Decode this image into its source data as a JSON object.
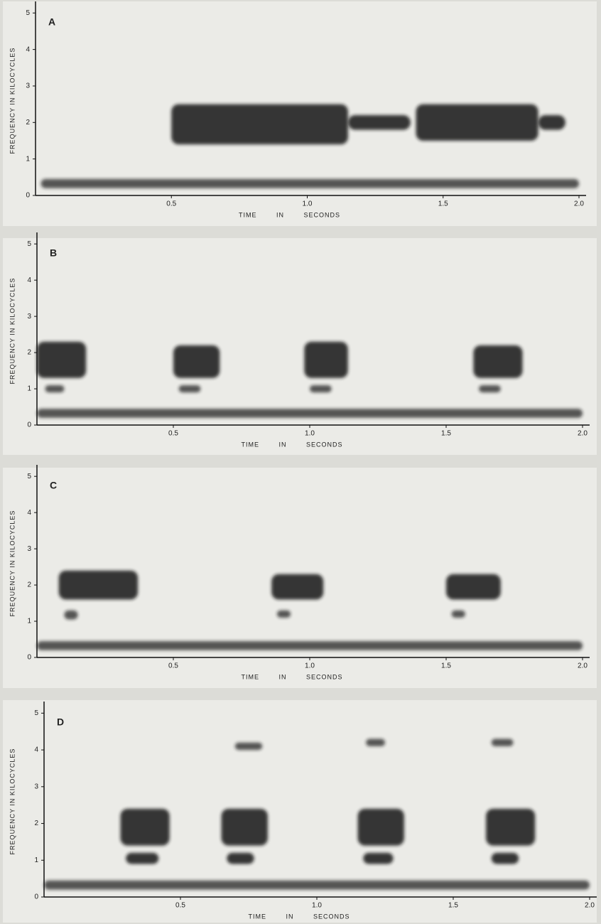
{
  "chart_data": [
    {
      "type": "spectrogram",
      "title": "A",
      "ylabel": "FREQUENCY IN KILOCYCLES",
      "xlabel": "TIME IN SECONDS",
      "xlim": [
        0,
        2.0
      ],
      "ylim": [
        0,
        5.2
      ],
      "xticks": [
        0.5,
        {
          "value": 1,
          "label": "1.0"
        },
        1.5,
        {
          "value": 2,
          "label": "2.0"
        }
      ],
      "yticks": [
        0,
        1,
        2,
        3,
        4,
        5
      ],
      "segments": [
        {
          "t": [
            0.02,
            2.0
          ],
          "f": [
            0.2,
            0.45
          ]
        },
        {
          "t": [
            0.5,
            1.15
          ],
          "f": [
            1.4,
            2.5
          ]
        },
        {
          "t": [
            1.15,
            1.38
          ],
          "f": [
            1.8,
            2.2
          ]
        },
        {
          "t": [
            1.4,
            1.85
          ],
          "f": [
            1.5,
            2.5
          ]
        },
        {
          "t": [
            1.85,
            1.95
          ],
          "f": [
            1.8,
            2.2
          ]
        }
      ]
    },
    {
      "type": "spectrogram",
      "title": "B",
      "ylabel": "FREQUENCY IN KILOCYCLES",
      "xlabel": "TIME IN SECONDS",
      "xlim": [
        0,
        2.0
      ],
      "ylim": [
        0,
        5.2
      ],
      "xticks": [
        0.5,
        {
          "value": 1,
          "label": "1.0"
        },
        1.5,
        {
          "value": 2,
          "label": "2.0"
        }
      ],
      "yticks": [
        0,
        1,
        2,
        3,
        4,
        5
      ],
      "segments": [
        {
          "t": [
            0.0,
            2.0
          ],
          "f": [
            0.2,
            0.45
          ]
        },
        {
          "t": [
            0.0,
            0.18
          ],
          "f": [
            1.3,
            2.3
          ]
        },
        {
          "t": [
            0.03,
            0.1
          ],
          "f": [
            0.9,
            1.1
          ]
        },
        {
          "t": [
            0.5,
            0.67
          ],
          "f": [
            1.3,
            2.2
          ]
        },
        {
          "t": [
            0.52,
            0.6
          ],
          "f": [
            0.9,
            1.1
          ]
        },
        {
          "t": [
            0.98,
            1.14
          ],
          "f": [
            1.3,
            2.3
          ]
        },
        {
          "t": [
            1.0,
            1.08
          ],
          "f": [
            0.9,
            1.1
          ]
        },
        {
          "t": [
            1.6,
            1.78
          ],
          "f": [
            1.3,
            2.2
          ]
        },
        {
          "t": [
            1.62,
            1.7
          ],
          "f": [
            0.9,
            1.1
          ]
        }
      ]
    },
    {
      "type": "spectrogram",
      "title": "C",
      "ylabel": "FREQUENCY IN KILOCYCLES",
      "xlabel": "TIME IN SECONDS",
      "xlim": [
        0,
        2.0
      ],
      "ylim": [
        0,
        5.2
      ],
      "xticks": [
        0.5,
        {
          "value": 1,
          "label": "1.0"
        },
        1.5,
        {
          "value": 2,
          "label": "2.0"
        }
      ],
      "yticks": [
        0,
        1,
        2,
        3,
        4,
        5
      ],
      "segments": [
        {
          "t": [
            0.0,
            2.0
          ],
          "f": [
            0.2,
            0.45
          ]
        },
        {
          "t": [
            0.08,
            0.37
          ],
          "f": [
            1.6,
            2.4
          ]
        },
        {
          "t": [
            0.1,
            0.15
          ],
          "f": [
            1.05,
            1.3
          ]
        },
        {
          "t": [
            0.86,
            1.05
          ],
          "f": [
            1.6,
            2.3
          ]
        },
        {
          "t": [
            0.88,
            0.93
          ],
          "f": [
            1.1,
            1.3
          ]
        },
        {
          "t": [
            1.5,
            1.7
          ],
          "f": [
            1.6,
            2.3
          ]
        },
        {
          "t": [
            1.52,
            1.57
          ],
          "f": [
            1.1,
            1.3
          ]
        }
      ]
    },
    {
      "type": "spectrogram",
      "title": "D",
      "ylabel": "FREQUENCY IN KILOCYCLES",
      "xlabel": "TIME IN SECONDS",
      "xlim": [
        0,
        2.0
      ],
      "ylim": [
        0,
        5.2
      ],
      "xticks": [
        0.5,
        {
          "value": 1,
          "label": "1.0"
        },
        1.5,
        {
          "value": 2,
          "label": "2.0"
        }
      ],
      "yticks": [
        0,
        1,
        2,
        3,
        4,
        5
      ],
      "segments": [
        {
          "t": [
            0.0,
            2.0
          ],
          "f": [
            0.2,
            0.45
          ]
        },
        {
          "t": [
            0.28,
            0.46
          ],
          "f": [
            1.4,
            2.4
          ]
        },
        {
          "t": [
            0.3,
            0.42
          ],
          "f": [
            0.9,
            1.2
          ]
        },
        {
          "t": [
            0.65,
            0.82
          ],
          "f": [
            1.4,
            2.4
          ]
        },
        {
          "t": [
            0.67,
            0.77
          ],
          "f": [
            0.9,
            1.2
          ]
        },
        {
          "t": [
            1.15,
            1.32
          ],
          "f": [
            1.4,
            2.4
          ]
        },
        {
          "t": [
            1.17,
            1.28
          ],
          "f": [
            0.9,
            1.2
          ]
        },
        {
          "t": [
            1.62,
            1.8
          ],
          "f": [
            1.4,
            2.4
          ]
        },
        {
          "t": [
            1.64,
            1.74
          ],
          "f": [
            0.9,
            1.2
          ]
        },
        {
          "t": [
            0.7,
            0.8
          ],
          "f": [
            4.0,
            4.2
          ]
        },
        {
          "t": [
            1.18,
            1.25
          ],
          "f": [
            4.1,
            4.3
          ]
        },
        {
          "t": [
            1.64,
            1.72
          ],
          "f": [
            4.1,
            4.3
          ]
        }
      ]
    }
  ]
}
